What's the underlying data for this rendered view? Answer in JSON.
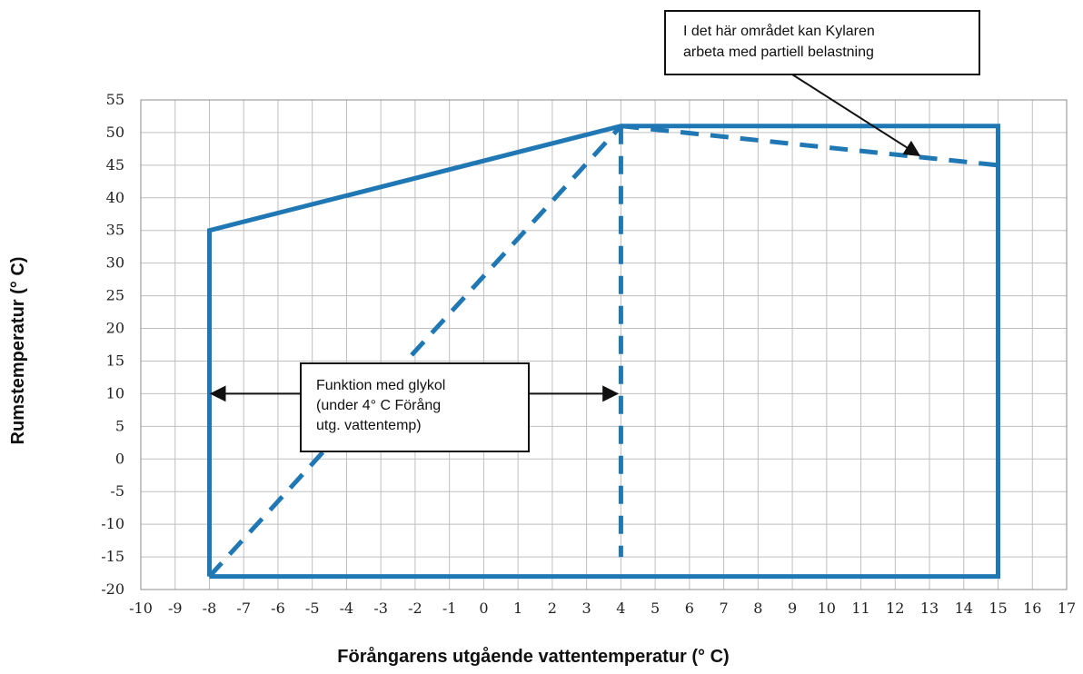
{
  "chart_data": {
    "type": "line",
    "title": "",
    "xlabel": "Förångarens utgående vattentemperatur (° C)",
    "ylabel": "Rumstemperatur  (° C)",
    "xlim": [
      -10,
      17
    ],
    "ylim": [
      -20,
      55
    ],
    "x_ticks": [
      -10,
      -9,
      -8,
      -7,
      -6,
      -5,
      -4,
      -3,
      -2,
      -1,
      0,
      1,
      2,
      3,
      4,
      5,
      6,
      7,
      8,
      9,
      10,
      11,
      12,
      13,
      14,
      15,
      16,
      17
    ],
    "y_ticks": [
      55,
      50,
      45,
      40,
      35,
      30,
      25,
      20,
      15,
      10,
      5,
      0,
      -5,
      -10,
      -15,
      -20
    ],
    "grid": true,
    "accent_color": "#1f77b4",
    "series": [
      {
        "style": "solid",
        "points": [
          [
            -8,
            -18
          ],
          [
            -8,
            35
          ],
          [
            4,
            51
          ],
          [
            15,
            51
          ],
          [
            15,
            -18
          ],
          [
            -8,
            -18
          ]
        ]
      },
      {
        "style": "dashed",
        "points": [
          [
            -8,
            -18
          ],
          [
            4,
            51
          ]
        ]
      },
      {
        "style": "dashed",
        "points": [
          [
            4,
            51
          ],
          [
            4,
            -15
          ]
        ]
      },
      {
        "style": "dashed",
        "points": [
          [
            4,
            51
          ],
          [
            15,
            45
          ]
        ]
      }
    ],
    "annotations": [
      {
        "lines": [
          "I det här området kan Kylaren",
          "arbeta med partiell belastning"
        ],
        "arrow_to": [
          12.7,
          46.5
        ]
      },
      {
        "lines": [
          "Funktion med glykol",
          "(under  4°  C  Förång",
          "utg. vattentemp)"
        ],
        "arrows_to": [
          [
            -8,
            10
          ],
          [
            4,
            10
          ]
        ]
      }
    ]
  }
}
